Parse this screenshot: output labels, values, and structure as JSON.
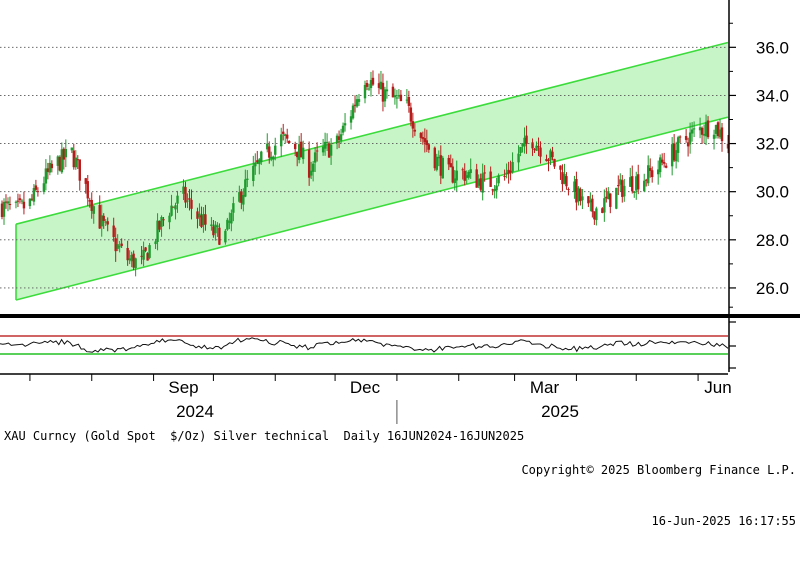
{
  "chart_data": {
    "type": "candlestick",
    "title": "",
    "y_axis": {
      "ticks": [
        26.0,
        28.0,
        30.0,
        32.0,
        34.0,
        36.0
      ],
      "ylim": [
        25.0,
        37.8
      ],
      "side": "right"
    },
    "x_axis": {
      "month_labels": [
        "Sep",
        "Dec",
        "Mar",
        "Jun"
      ],
      "year_labels": [
        "2024",
        "2025"
      ]
    },
    "date_range": [
      "2024-06-16",
      "2025-06-16"
    ],
    "grid": "horizontal-dotted",
    "series": [
      {
        "name": "",
        "kind": "ohlc",
        "points": [
          [
            "2024-06-17",
            29.4
          ],
          [
            "2024-06-24",
            29.2
          ],
          [
            "2024-07-01",
            29.5
          ],
          [
            "2024-07-08",
            30.5
          ],
          [
            "2024-07-15",
            31.2
          ],
          [
            "2024-07-22",
            31.6
          ],
          [
            "2024-07-29",
            30.2
          ],
          [
            "2024-08-05",
            28.8
          ],
          [
            "2024-08-12",
            27.9
          ],
          [
            "2024-08-19",
            27.2
          ],
          [
            "2024-08-26",
            27.0
          ],
          [
            "2024-09-02",
            28.2
          ],
          [
            "2024-09-09",
            29.3
          ],
          [
            "2024-09-16",
            29.8
          ],
          [
            "2024-09-23",
            29.0
          ],
          [
            "2024-09-30",
            28.3
          ],
          [
            "2024-10-07",
            28.2
          ],
          [
            "2024-10-14",
            29.8
          ],
          [
            "2024-10-21",
            30.8
          ],
          [
            "2024-10-28",
            31.6
          ],
          [
            "2024-11-04",
            32.2
          ],
          [
            "2024-11-11",
            31.9
          ],
          [
            "2024-11-18",
            31.0
          ],
          [
            "2024-11-25",
            31.7
          ],
          [
            "2024-12-02",
            32.0
          ],
          [
            "2024-12-09",
            33.3
          ],
          [
            "2024-12-16",
            34.8
          ],
          [
            "2024-12-23",
            34.2
          ],
          [
            "2025-01-06",
            33.5
          ],
          [
            "2025-01-13",
            32.4
          ],
          [
            "2025-01-20",
            31.4
          ],
          [
            "2025-01-27",
            30.7
          ],
          [
            "2025-02-03",
            30.8
          ],
          [
            "2025-02-10",
            30.5
          ],
          [
            "2025-02-17",
            30.4
          ],
          [
            "2025-02-24",
            30.6
          ],
          [
            "2025-03-03",
            31.6
          ],
          [
            "2025-03-10",
            32.2
          ],
          [
            "2025-03-17",
            31.6
          ],
          [
            "2025-03-24",
            30.8
          ],
          [
            "2025-03-31",
            30.0
          ],
          [
            "2025-04-07",
            29.2
          ],
          [
            "2025-04-14",
            29.4
          ],
          [
            "2025-04-21",
            30.0
          ],
          [
            "2025-04-28",
            30.4
          ],
          [
            "2025-05-05",
            30.6
          ],
          [
            "2025-05-12",
            31.0
          ],
          [
            "2025-05-19",
            31.6
          ],
          [
            "2025-05-26",
            32.2
          ],
          [
            "2025-06-02",
            32.6
          ],
          [
            "2025-06-09",
            32.8
          ],
          [
            "2025-06-16",
            32.0
          ]
        ]
      }
    ],
    "lower_panel": {
      "name": "",
      "kind": "oscillator"
    },
    "annotations": [
      {
        "kind": "channel",
        "from": [
          "2024-06-16",
          28.6
        ],
        "to": [
          "2025-06-16",
          36.2
        ],
        "width": 3.1
      }
    ]
  },
  "footer": {
    "left_text": "XAU Curncy (Gold Spot  $/Oz) Silver technical  Daily 16JUN2024-16JUN2025",
    "copyright": "Copyright© 2025 Bloomberg Finance L.P.",
    "timestamp": "16-Jun-2025 16:17:55"
  },
  "colors": {
    "up": "#1f9a2e",
    "down": "#b71c1c",
    "channel_line": "#3cdc3c",
    "channel_fill": "#c8f5c8",
    "overbought": "#c03030",
    "oversold": "#22c022",
    "axis": "#000000",
    "grid": "#555555"
  }
}
